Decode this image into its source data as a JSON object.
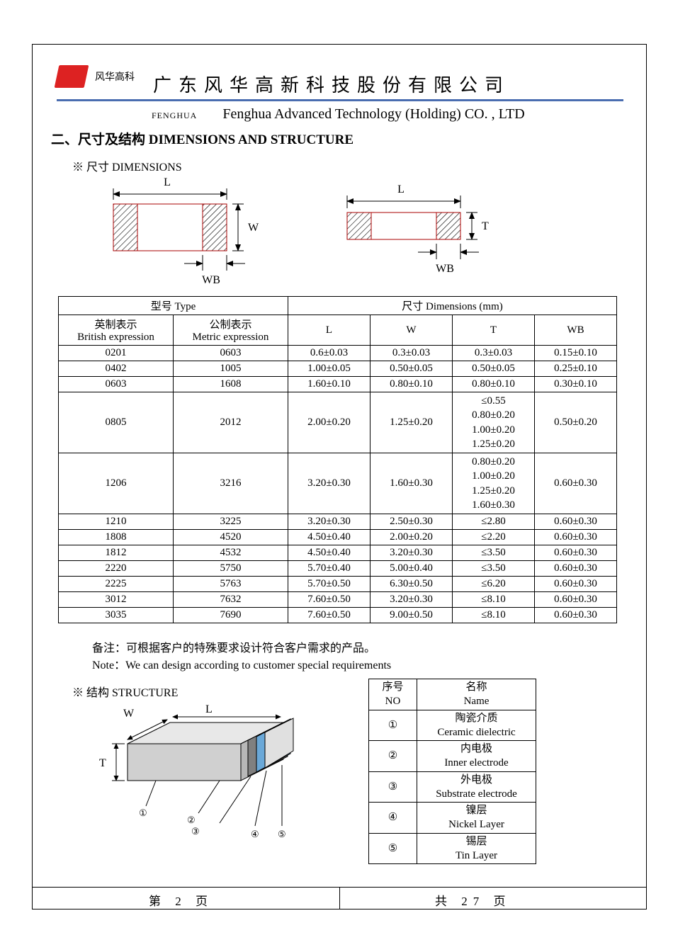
{
  "header": {
    "logo_text": "风华高科",
    "cn_title": "广东风华高新科技股份有限公司",
    "fenghua_small": "FENGHUA",
    "en_title": "Fenghua Advanced Technology (Holding) CO. , LTD",
    "blue_color": "#4a6db0",
    "logo_color": "#d22"
  },
  "section": {
    "title": "二、尺寸及结构   DIMENSIONS AND STRUCTURE",
    "dims_label": "※ 尺寸 DIMENSIONS",
    "structure_label": "※ 结构 STRUCTURE"
  },
  "diagram_labels": {
    "L": "L",
    "W": "W",
    "T": "T",
    "WB": "WB"
  },
  "dims_table": {
    "header_type": "型号 Type",
    "header_dims": "尺寸     Dimensions     (mm)",
    "col_british_cn": "英制表示",
    "col_british_en": "British expression",
    "col_metric_cn": "公制表示",
    "col_metric_en": "Metric expression",
    "col_L": "L",
    "col_W": "W",
    "col_T": "T",
    "col_WB": "WB",
    "rows": [
      {
        "b": "0201",
        "m": "0603",
        "L": "0.6±0.03",
        "W": "0.3±0.03",
        "T": "0.3±0.03",
        "WB": "0.15±0.10"
      },
      {
        "b": "0402",
        "m": "1005",
        "L": "1.00±0.05",
        "W": "0.50±0.05",
        "T": "0.50±0.05",
        "WB": "0.25±0.10"
      },
      {
        "b": "0603",
        "m": "1608",
        "L": "1.60±0.10",
        "W": "0.80±0.10",
        "T": "0.80±0.10",
        "WB": "0.30±0.10"
      },
      {
        "b": "0805",
        "m": "2012",
        "L": "2.00±0.20",
        "W": "1.25±0.20",
        "T": "≤0.55\n0.80±0.20\n1.00±0.20\n1.25±0.20",
        "WB": "0.50±0.20"
      },
      {
        "b": "1206",
        "m": "3216",
        "L": "3.20±0.30",
        "W": "1.60±0.30",
        "T": "0.80±0.20\n1.00±0.20\n1.25±0.20\n1.60±0.30",
        "WB": "0.60±0.30"
      },
      {
        "b": "1210",
        "m": "3225",
        "L": "3.20±0.30",
        "W": "2.50±0.30",
        "T": "≤2.80",
        "WB": "0.60±0.30"
      },
      {
        "b": "1808",
        "m": "4520",
        "L": "4.50±0.40",
        "W": "2.00±0.20",
        "T": "≤2.20",
        "WB": "0.60±0.30"
      },
      {
        "b": "1812",
        "m": "4532",
        "L": "4.50±0.40",
        "W": "3.20±0.30",
        "T": "≤3.50",
        "WB": "0.60±0.30"
      },
      {
        "b": "2220",
        "m": "5750",
        "L": "5.70±0.40",
        "W": "5.00±0.40",
        "T": "≤3.50",
        "WB": "0.60±0.30"
      },
      {
        "b": "2225",
        "m": "5763",
        "L": "5.70±0.50",
        "W": "6.30±0.50",
        "T": "≤6.20",
        "WB": "0.60±0.30"
      },
      {
        "b": "3012",
        "m": "7632",
        "L": "7.60±0.50",
        "W": "3.20±0.30",
        "T": "≤8.10",
        "WB": "0.60±0.30"
      },
      {
        "b": "3035",
        "m": "7690",
        "L": "7.60±0.50",
        "W": "9.00±0.50",
        "T": "≤8.10",
        "WB": "0.60±0.30"
      }
    ]
  },
  "notes": {
    "cn": "备注：可根据客户的特殊要求设计符合客户需求的产品。",
    "en": "Note：We can design according to customer special requirements"
  },
  "structure_table": {
    "col_no_cn": "序号",
    "col_no_en": "NO",
    "col_name_cn": "名称",
    "col_name_en": "Name",
    "rows": [
      {
        "no": "1",
        "cn": "陶瓷介质",
        "en": "Ceramic   dielectric"
      },
      {
        "no": "2",
        "cn": "内电极",
        "en": "Inner   electrode"
      },
      {
        "no": "3",
        "cn": "外电极",
        "en": "Substrate   electrode"
      },
      {
        "no": "4",
        "cn": "镍层",
        "en": "Nickel Layer"
      },
      {
        "no": "5",
        "cn": "锡层",
        "en": "Tin Layer"
      }
    ]
  },
  "structure_diag": {
    "labels": {
      "W": "W",
      "L": "L",
      "T": "T"
    },
    "colors": {
      "body": "#e8e8e8",
      "body_dark": "#b8b8b8",
      "outer": "#808080",
      "nickel": "#6aa8d8",
      "tin": "#d8d8d8"
    }
  },
  "footer": {
    "left": "第  2  页",
    "right": "共  27  页"
  },
  "style": {
    "font_family": "Times New Roman, SimSun, serif",
    "border_color": "#000000",
    "background": "#ffffff",
    "table_font_size": 15,
    "title_font_size": 19,
    "cn_title_font_size": 26
  }
}
